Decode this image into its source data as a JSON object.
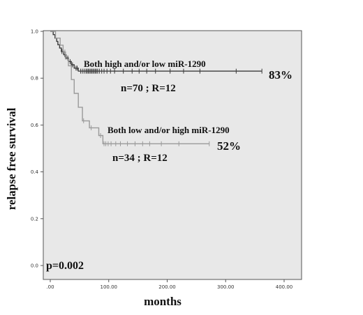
{
  "chart_data": {
    "type": "line",
    "subtype": "kaplan-meier-step",
    "xlabel": "months",
    "ylabel": "relapse free survival",
    "xlim": [
      0,
      400
    ],
    "ylim": [
      0,
      1.0
    ],
    "x_ticks": [
      ".00",
      "100.00",
      "200.00",
      "300.00",
      "400.00"
    ],
    "y_ticks": [
      "0.0",
      "0.2",
      "0.4",
      "0.6",
      "0.8",
      "1.0"
    ],
    "x_tick_values": [
      0,
      100,
      200,
      300,
      400
    ],
    "y_tick_values": [
      0,
      0.2,
      0.4,
      0.6,
      0.8,
      1.0
    ],
    "grid": false,
    "legend": "none",
    "colors": {
      "background": "#e8e8e8",
      "series_high": "#3a3a3a",
      "series_low": "#9a9a9a"
    },
    "series": [
      {
        "label": "Both high and/or low miR-1290",
        "stats": "n=70 ; R=12",
        "percent": "83%",
        "steps": [
          [
            0,
            1.0
          ],
          [
            5,
            1.0
          ],
          [
            5,
            0.986
          ],
          [
            8,
            0.986
          ],
          [
            8,
            0.971
          ],
          [
            11,
            0.971
          ],
          [
            11,
            0.957
          ],
          [
            13,
            0.957
          ],
          [
            13,
            0.943
          ],
          [
            16,
            0.943
          ],
          [
            16,
            0.929
          ],
          [
            19,
            0.929
          ],
          [
            19,
            0.914
          ],
          [
            23,
            0.914
          ],
          [
            23,
            0.9
          ],
          [
            27,
            0.9
          ],
          [
            27,
            0.886
          ],
          [
            31,
            0.886
          ],
          [
            31,
            0.871
          ],
          [
            36,
            0.871
          ],
          [
            36,
            0.857
          ],
          [
            41,
            0.857
          ],
          [
            41,
            0.843
          ],
          [
            48,
            0.843
          ],
          [
            48,
            0.83
          ],
          [
            362,
            0.83
          ]
        ],
        "censored_x": [
          20,
          25,
          30,
          34,
          38,
          44,
          46,
          52,
          55,
          58,
          61,
          63,
          65,
          67,
          69,
          71,
          73,
          75,
          77,
          79,
          81,
          84,
          88,
          92,
          97,
          103,
          110,
          125,
          140,
          152,
          165,
          180,
          205,
          228,
          256,
          318,
          362
        ]
      },
      {
        "label": "Both low and/or high miR-1290",
        "stats": "n=34 ; R=12",
        "percent": "52%",
        "steps": [
          [
            0,
            1.0
          ],
          [
            9,
            1.0
          ],
          [
            9,
            0.971
          ],
          [
            17,
            0.971
          ],
          [
            17,
            0.941
          ],
          [
            22,
            0.941
          ],
          [
            22,
            0.912
          ],
          [
            26,
            0.912
          ],
          [
            26,
            0.882
          ],
          [
            31,
            0.882
          ],
          [
            31,
            0.853
          ],
          [
            36,
            0.853
          ],
          [
            36,
            0.794
          ],
          [
            41,
            0.794
          ],
          [
            41,
            0.735
          ],
          [
            48,
            0.735
          ],
          [
            48,
            0.676
          ],
          [
            55,
            0.676
          ],
          [
            55,
            0.618
          ],
          [
            67,
            0.618
          ],
          [
            67,
            0.588
          ],
          [
            83,
            0.588
          ],
          [
            83,
            0.555
          ],
          [
            90,
            0.555
          ],
          [
            90,
            0.52
          ],
          [
            272,
            0.52
          ]
        ],
        "censored_x": [
          25,
          57,
          70,
          86,
          92,
          95,
          99,
          104,
          112,
          120,
          132,
          145,
          158,
          170,
          190,
          220,
          272
        ]
      }
    ],
    "annotations": {
      "p_value": "p=0.002"
    }
  }
}
